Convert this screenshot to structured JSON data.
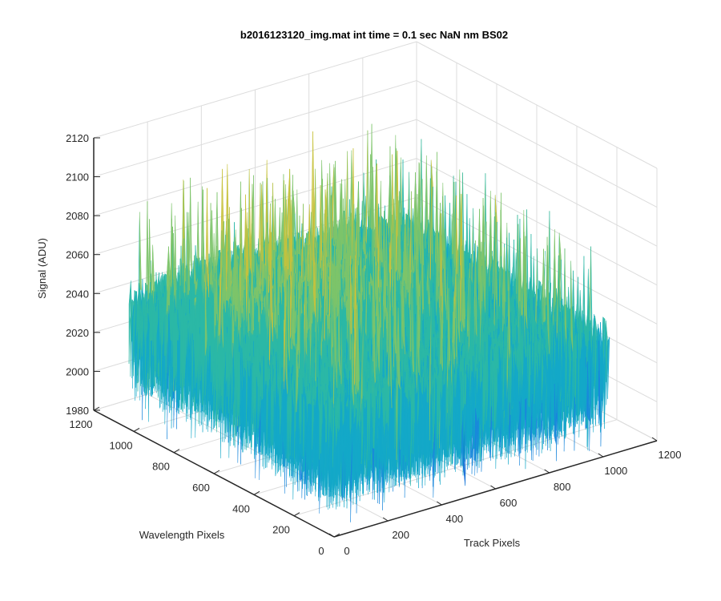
{
  "chart_data": {
    "type": "surface3d",
    "title": "b2016123120_img.mat int time = 0.1 sec  NaN nm BS02",
    "xlabel": "Track Pixels",
    "ylabel": "Wavelength Pixels",
    "zlabel": "Signal (ADU)",
    "xlim": [
      0,
      1200
    ],
    "ylim": [
      0,
      1200
    ],
    "zlim": [
      1980,
      2120
    ],
    "x_ticks": [
      0,
      200,
      400,
      600,
      800,
      1000,
      1200
    ],
    "y_ticks": [
      0,
      200,
      400,
      600,
      800,
      1000,
      1200
    ],
    "z_ticks": [
      1980,
      2000,
      2020,
      2040,
      2060,
      2080,
      2100,
      2120
    ],
    "data_extent": {
      "x": [
        0,
        1024
      ],
      "y": [
        0,
        1024
      ]
    },
    "mean_signal": 2035,
    "signal_range": [
      1985,
      2115
    ],
    "grid": true,
    "colormap": "parula",
    "colors": [
      "#0f5fd6",
      "#1a87dc",
      "#14a8c8",
      "#2bb8a6",
      "#7dc46a",
      "#c7c23c",
      "#e6d33a"
    ]
  }
}
